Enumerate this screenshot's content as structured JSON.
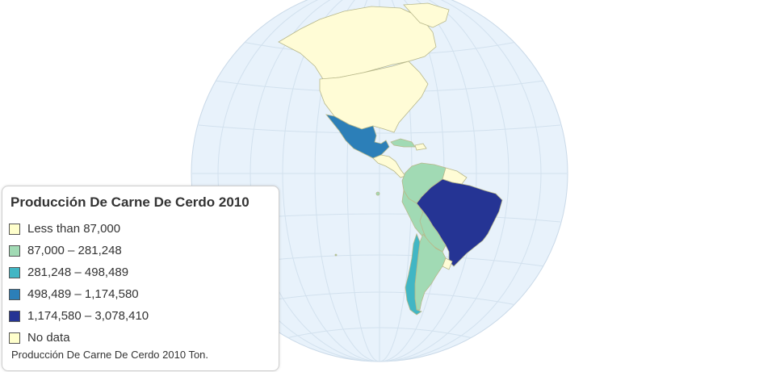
{
  "legend": {
    "title": "Producción De Carne De Cerdo 2010",
    "bins": [
      {
        "label": "Less than 87,000",
        "color": "#ffffcc"
      },
      {
        "label": "87,000 – 281,248",
        "color": "#a1dab4"
      },
      {
        "label": "281,248 – 498,489",
        "color": "#41b6c4"
      },
      {
        "label": "498,489 – 1,174,580",
        "color": "#2c7fb8"
      },
      {
        "label": "1,174,580 – 3,078,410",
        "color": "#253494"
      },
      {
        "label": "No data",
        "color": "#ffffcc"
      }
    ],
    "note": "Producción De Carne De Cerdo 2010 Ton."
  },
  "map": {
    "projection": "orthographic globe",
    "ocean_color": "#e8f2fb",
    "land_no_data_color": "#fffcd6",
    "countries": [
      {
        "name": "Canada",
        "bin": "No data"
      },
      {
        "name": "United States",
        "bin": "No data"
      },
      {
        "name": "Mexico",
        "bin": "498,489 – 1,174,580"
      },
      {
        "name": "Cuba",
        "bin": "87,000 – 281,248"
      },
      {
        "name": "Central America",
        "bin": "Less than 87,000"
      },
      {
        "name": "Colombia",
        "bin": "87,000 – 281,248"
      },
      {
        "name": "Venezuela",
        "bin": "87,000 – 281,248"
      },
      {
        "name": "Guyanas",
        "bin": "Less than 87,000"
      },
      {
        "name": "Peru",
        "bin": "87,000 – 281,248"
      },
      {
        "name": "Bolivia",
        "bin": "87,000 – 281,248"
      },
      {
        "name": "Brazil",
        "bin": "1,174,580 – 3,078,410"
      },
      {
        "name": "Paraguay",
        "bin": "87,000 – 281,248"
      },
      {
        "name": "Uruguay",
        "bin": "Less than 87,000"
      },
      {
        "name": "Argentina",
        "bin": "87,000 – 281,248"
      },
      {
        "name": "Chile",
        "bin": "281,248 – 498,489"
      }
    ]
  }
}
